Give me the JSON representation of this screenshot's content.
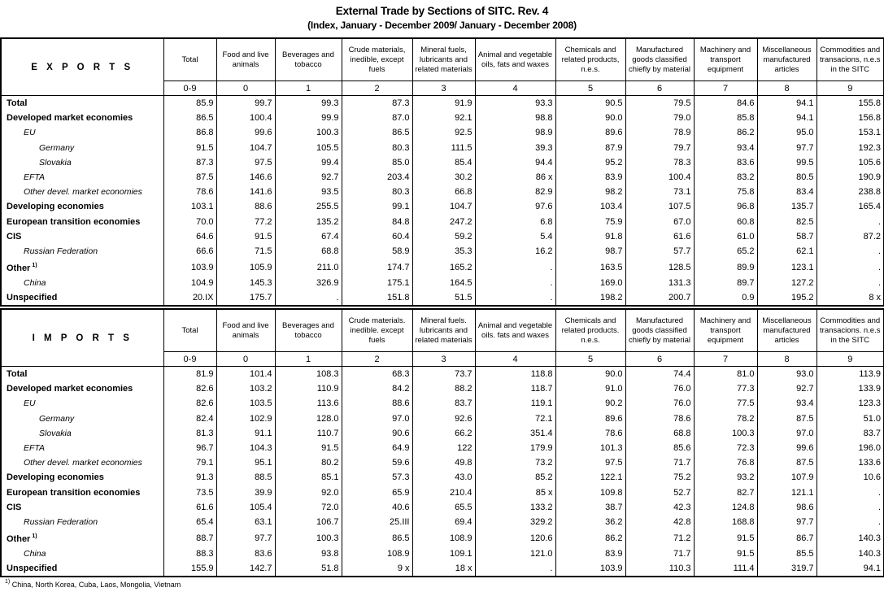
{
  "title": "External Trade by Sections of SITC. Rev. 4",
  "subtitle": "(Index, January - December 2009/ January - December 2008)",
  "footnote": {
    "mark": "1)",
    "text": "China, North Korea, Cuba, Laos, Mongolia, Vietnam"
  },
  "tables": [
    {
      "id": "exports",
      "section": "E X P O R T S",
      "columns": [
        "Total",
        "Food and live animals",
        "Beverages and tobacco",
        "Crude materials, inedible, except fuels",
        "Mineral fuels, lubricants and related materials",
        "Animal and vegetable oils, fats and waxes",
        "Chemicals and related products, n.e.s.",
        "Manufactured goods classified chiefly by material",
        "Machinery and transport equipment",
        "Miscellaneous manufactured articles",
        "Commodities and transacions, n.e.s in the SITC"
      ],
      "codes": [
        "0-9",
        "0",
        "1",
        "2",
        "3",
        "4",
        "5",
        "6",
        "7",
        "8",
        "9"
      ],
      "rows": [
        {
          "label": "Total",
          "level": 0,
          "values": [
            "85.9",
            "99.7",
            "99.3",
            "87.3",
            "91.9",
            "93.3",
            "90.5",
            "79.5",
            "84.6",
            "94.1",
            "155.8"
          ]
        },
        {
          "label": "Developed market economies",
          "level": 0,
          "values": [
            "86.5",
            "100.4",
            "99.9",
            "87.0",
            "92.1",
            "98.8",
            "90.0",
            "79.0",
            "85.8",
            "94.1",
            "156.8"
          ]
        },
        {
          "label": "EU",
          "level": 1,
          "values": [
            "86.8",
            "99.6",
            "100.3",
            "86.5",
            "92.5",
            "98.9",
            "89.6",
            "78.9",
            "86.2",
            "95.0",
            "153.1"
          ]
        },
        {
          "label": "Germany",
          "level": 2,
          "values": [
            "91.5",
            "104.7",
            "105.5",
            "80.3",
            "111.5",
            "39.3",
            "87.9",
            "79.7",
            "93.4",
            "97.7",
            "192.3"
          ]
        },
        {
          "label": "Slovakia",
          "level": 2,
          "values": [
            "87.3",
            "97.5",
            "99.4",
            "85.0",
            "85.4",
            "94.4",
            "95.2",
            "78.3",
            "83.6",
            "99.5",
            "105.6"
          ]
        },
        {
          "label": "EFTA",
          "level": 1,
          "values": [
            "87.5",
            "146.6",
            "92.7",
            "203.4",
            "30.2",
            "86 x",
            "83.9",
            "100.4",
            "83.2",
            "80.5",
            "190.9"
          ]
        },
        {
          "label": "Other devel. market economies",
          "level": 1,
          "values": [
            "78.6",
            "141.6",
            "93.5",
            "80.3",
            "66.8",
            "82.9",
            "98.2",
            "73.1",
            "75.8",
            "83.4",
            "238.8"
          ]
        },
        {
          "label": "Developing economies",
          "level": 0,
          "values": [
            "103.1",
            "88.6",
            "255.5",
            "99.1",
            "104.7",
            "97.6",
            "103.4",
            "107.5",
            "96.8",
            "135.7",
            "165.4"
          ]
        },
        {
          "label": "European transition economies",
          "level": 0,
          "values": [
            "70.0",
            "77.2",
            "135.2",
            "84.8",
            "247.2",
            "6.8",
            "75.9",
            "67.0",
            "60.8",
            "82.5",
            "."
          ]
        },
        {
          "label": "CIS",
          "level": 0,
          "values": [
            "64.6",
            "91.5",
            "67.4",
            "60.4",
            "59.2",
            "5.4",
            "91.8",
            "61.6",
            "61.0",
            "58.7",
            "87.2"
          ]
        },
        {
          "label": "Russian Federation",
          "level": 1,
          "values": [
            "66.6",
            "71.5",
            "68.8",
            "58.9",
            "35.3",
            "16.2",
            "98.7",
            "57.7",
            "65.2",
            "62.1",
            "."
          ]
        },
        {
          "label": "Other",
          "level": 0,
          "note": "1)",
          "values": [
            "103.9",
            "105.9",
            "211.0",
            "174.7",
            "165.2",
            ".",
            "163.5",
            "128.5",
            "89.9",
            "123.1",
            "."
          ]
        },
        {
          "label": "China",
          "level": 1,
          "values": [
            "104.9",
            "145.3",
            "326.9",
            "175.1",
            "164.5",
            ".",
            "169.0",
            "131.3",
            "89.7",
            "127.2",
            "."
          ]
        },
        {
          "label": "Unspecified",
          "level": 0,
          "values": [
            "20.IX",
            "175.7",
            ".",
            "151.8",
            "51.5",
            ".",
            "198.2",
            "200.7",
            "0.9",
            "195.2",
            "8 x"
          ]
        }
      ]
    },
    {
      "id": "imports",
      "section": "I M P O R T S",
      "columns": [
        "Total",
        "Food and live animals",
        "Beverages and tobacco",
        "Crude materials. inedible. except fuels",
        "Mineral fuels. lubricants and related materials",
        "Animal and vegetable oils. fats and waxes",
        "Chemicals and related products. n.e.s.",
        "Manufactured goods classified chiefly by material",
        "Machinery and transport equipment",
        "Miscellaneous manufactured articles",
        "Commodities and transacions. n.e.s in the SITC"
      ],
      "codes": [
        "0-9",
        "0",
        "1",
        "2",
        "3",
        "4",
        "5",
        "6",
        "7",
        "8",
        "9"
      ],
      "rows": [
        {
          "label": "Total",
          "level": 0,
          "values": [
            "81.9",
            "101.4",
            "108.3",
            "68.3",
            "73.7",
            "118.8",
            "90.0",
            "74.4",
            "81.0",
            "93.0",
            "113.9"
          ]
        },
        {
          "label": "Developed market economies",
          "level": 0,
          "values": [
            "82.6",
            "103.2",
            "110.9",
            "84.2",
            "88.2",
            "118.7",
            "91.0",
            "76.0",
            "77.3",
            "92.7",
            "133.9"
          ]
        },
        {
          "label": "EU",
          "level": 1,
          "values": [
            "82.6",
            "103.5",
            "113.6",
            "88.6",
            "83.7",
            "119.1",
            "90.2",
            "76.0",
            "77.5",
            "93.4",
            "123.3"
          ]
        },
        {
          "label": "Germany",
          "level": 2,
          "values": [
            "82.4",
            "102.9",
            "128.0",
            "97.0",
            "92.6",
            "72.1",
            "89.6",
            "78.6",
            "78.2",
            "87.5",
            "51.0"
          ]
        },
        {
          "label": "Slovakia",
          "level": 2,
          "values": [
            "81.3",
            "91.1",
            "110.7",
            "90.6",
            "66.2",
            "351.4",
            "78.6",
            "68.8",
            "100.3",
            "97.0",
            "83.7"
          ]
        },
        {
          "label": "EFTA",
          "level": 1,
          "values": [
            "96.7",
            "104.3",
            "91.5",
            "64.9",
            "122",
            "179.9",
            "101.3",
            "85.6",
            "72.3",
            "99.6",
            "196.0"
          ]
        },
        {
          "label": "Other devel. market economies",
          "level": 1,
          "values": [
            "79.1",
            "95.1",
            "80.2",
            "59.6",
            "49.8",
            "73.2",
            "97.5",
            "71.7",
            "76.8",
            "87.5",
            "133.6"
          ]
        },
        {
          "label": "Developing economies",
          "level": 0,
          "values": [
            "91.3",
            "88.5",
            "85.1",
            "57.3",
            "43.0",
            "85.2",
            "122.1",
            "75.2",
            "93.2",
            "107.9",
            "10.6"
          ]
        },
        {
          "label": "European transition economies",
          "level": 0,
          "values": [
            "73.5",
            "39.9",
            "92.0",
            "65.9",
            "210.4",
            "85 x",
            "109.8",
            "52.7",
            "82.7",
            "121.1",
            "."
          ]
        },
        {
          "label": "CIS",
          "level": 0,
          "values": [
            "61.6",
            "105.4",
            "72.0",
            "40.6",
            "65.5",
            "133.2",
            "38.7",
            "42.3",
            "124.8",
            "98.6",
            "."
          ]
        },
        {
          "label": "Russian Federation",
          "level": 1,
          "values": [
            "65.4",
            "63.1",
            "106.7",
            "25.III",
            "69.4",
            "329.2",
            "36.2",
            "42.8",
            "168.8",
            "97.7",
            "."
          ]
        },
        {
          "label": "Other",
          "level": 0,
          "note": "1)",
          "values": [
            "88.7",
            "97.7",
            "100.3",
            "86.5",
            "108.9",
            "120.6",
            "86.2",
            "71.2",
            "91.5",
            "86.7",
            "140.3"
          ]
        },
        {
          "label": "China",
          "level": 1,
          "values": [
            "88.3",
            "83.6",
            "93.8",
            "108.9",
            "109.1",
            "121.0",
            "83.9",
            "71.7",
            "91.5",
            "85.5",
            "140.3"
          ]
        },
        {
          "label": "Unspecified",
          "level": 0,
          "values": [
            "155.9",
            "142.7",
            "51.8",
            "9 x",
            "18 x",
            ".",
            "103.9",
            "110.3",
            "111.4",
            "319.7",
            "94.1"
          ]
        }
      ]
    }
  ]
}
